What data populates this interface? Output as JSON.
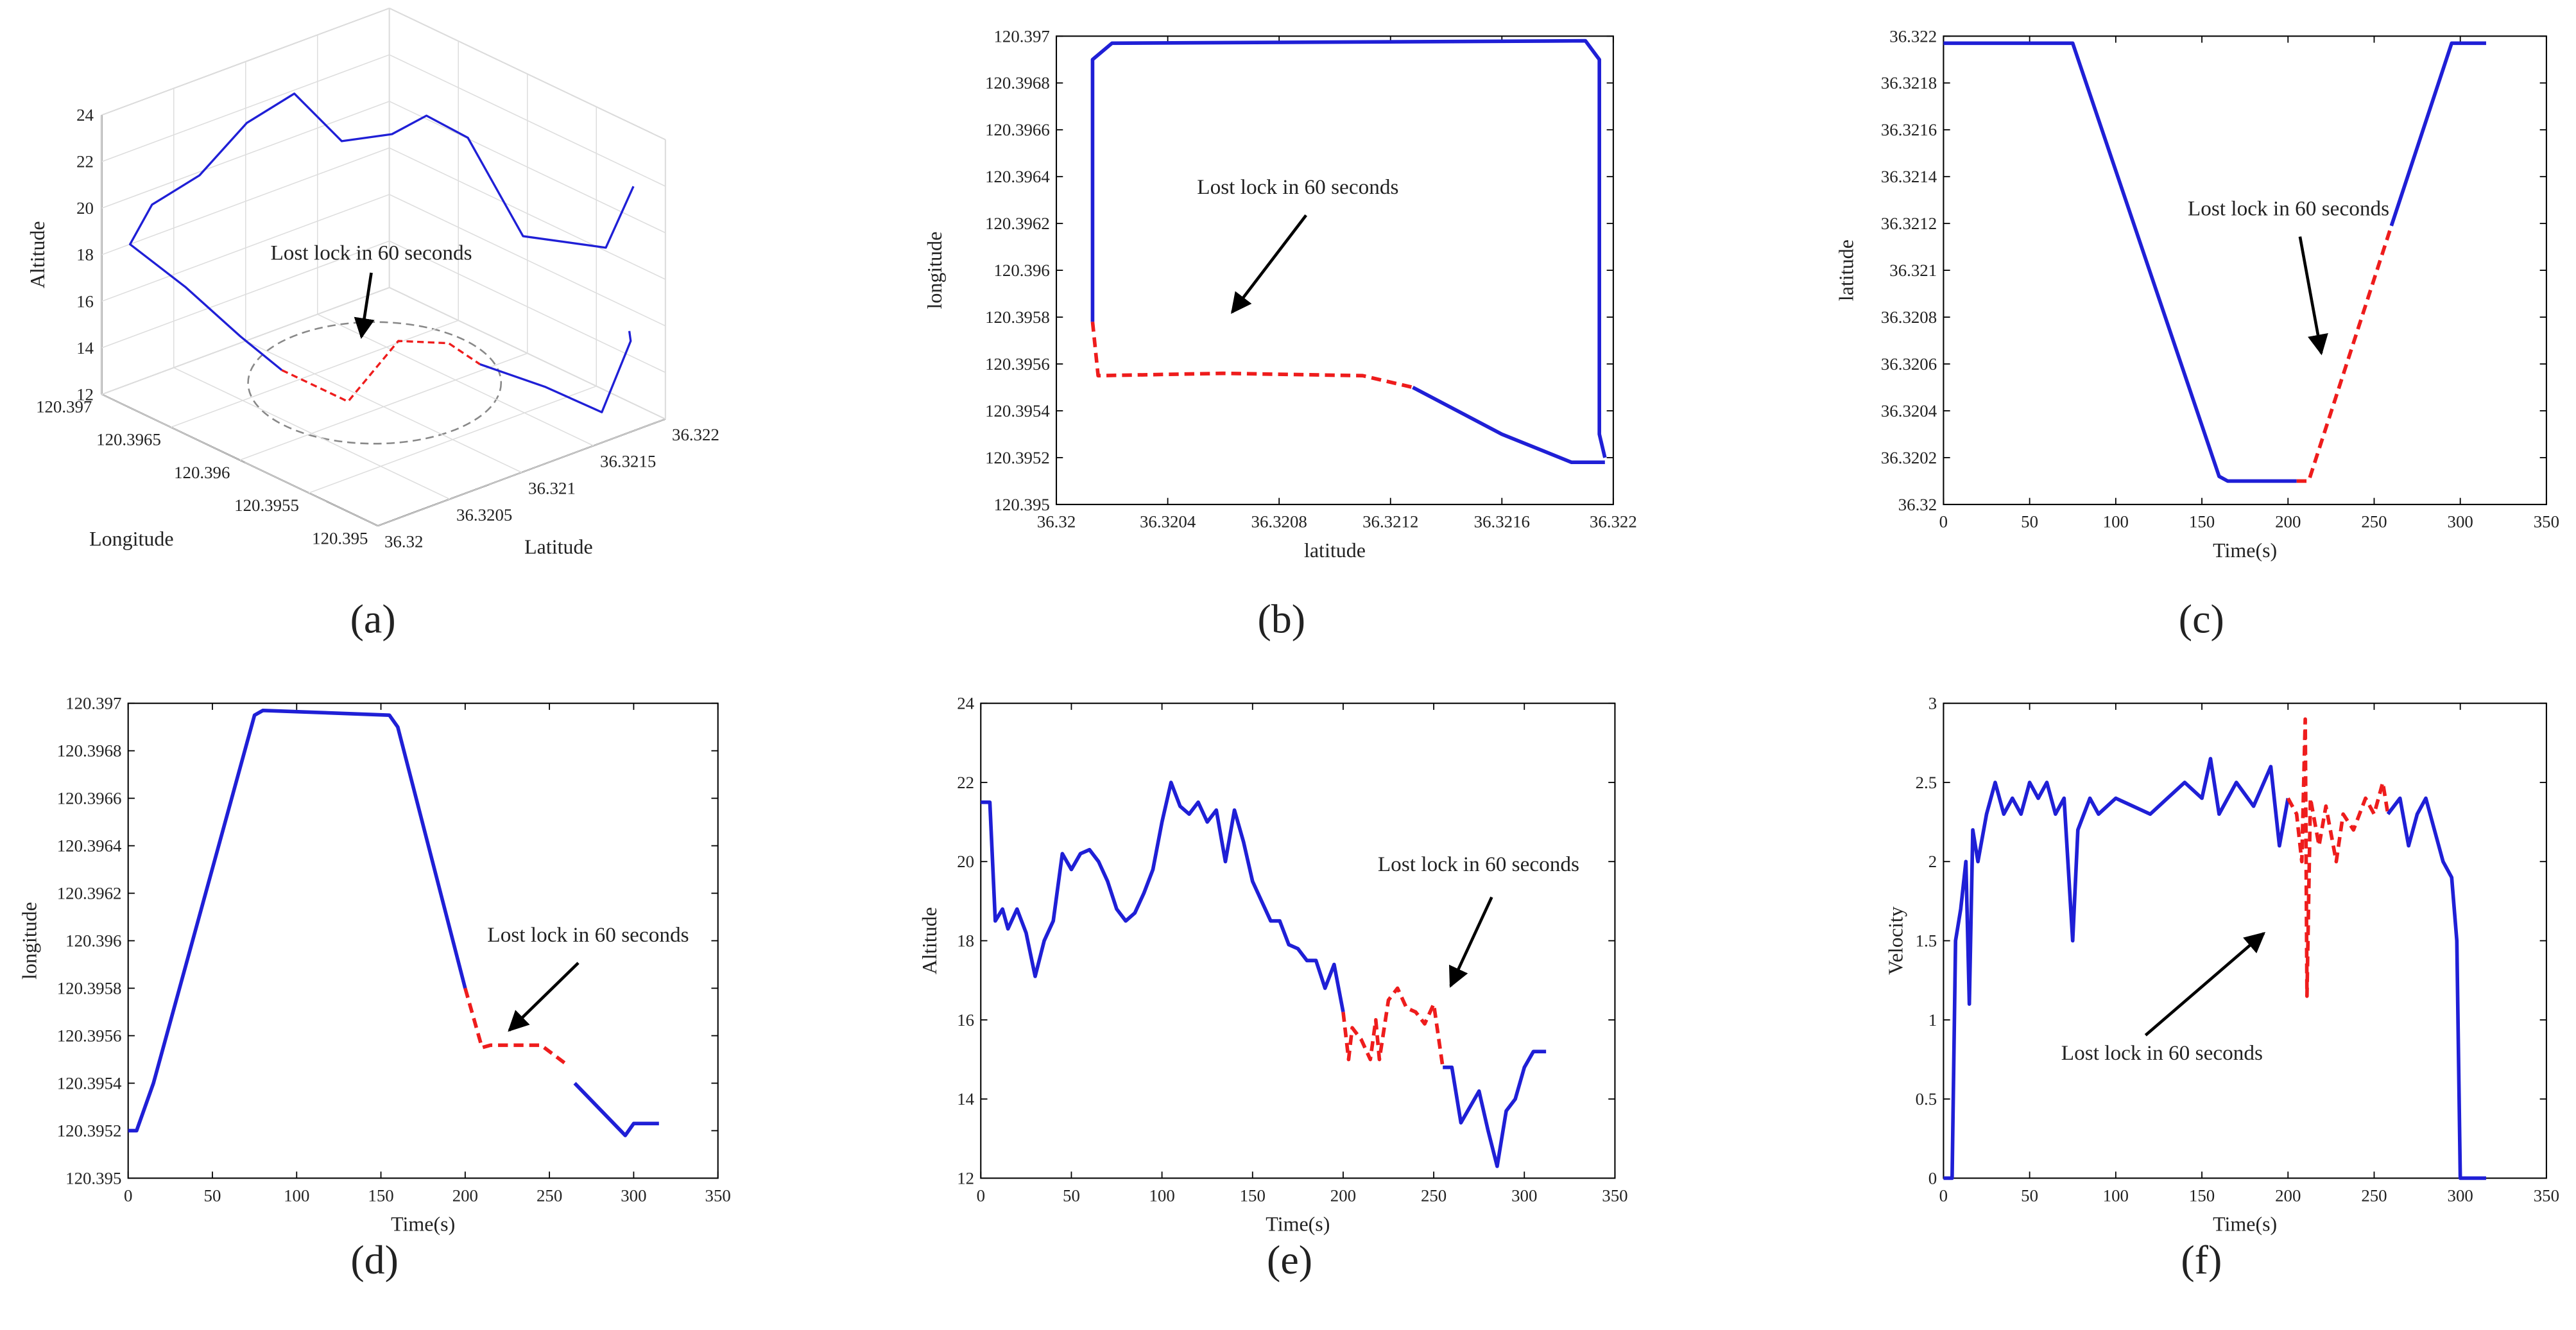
{
  "chart_data": [
    {
      "type": "line3d",
      "panel_label": "(a)",
      "xlabel": "Latitude",
      "ylabel": "Longitude",
      "zlabel": "Altitude",
      "annotation": "Lost lock in 60 seconds",
      "xlim": [
        36.32,
        36.322
      ],
      "xticks": [
        36.32,
        36.3205,
        36.321,
        36.3215,
        36.322
      ],
      "ylim": [
        120.395,
        120.397
      ],
      "yticks": [
        120.395,
        120.3955,
        120.396,
        120.3965,
        120.397
      ],
      "zlim": [
        12,
        24
      ],
      "zticks": [
        12,
        14,
        16,
        18,
        20,
        22,
        24
      ],
      "grid": true,
      "series": [
        {
          "color": "#1f1fd6",
          "dashed": false,
          "x": [
            36.32197,
            36.32197,
            36.32197,
            36.32197,
            36.32197,
            36.32197,
            36.32164,
            36.32131,
            36.32098,
            36.32065,
            36.32032,
            36.3201,
            36.3201,
            36.3201,
            36.3201
          ],
          "y": [
            120.3952,
            120.3954,
            120.396,
            120.3964,
            120.3967,
            120.39695,
            120.39697,
            120.39697,
            120.39697,
            120.39697,
            120.39697,
            120.3969,
            120.3965,
            120.3961,
            120.3958
          ],
          "values": [
            21.5,
            18.3,
            17.1,
            20.2,
            20.3,
            18.8,
            19.2,
            22,
            21.5,
            20,
            19.5,
            18.5,
            17.8,
            16.8,
            16.2
          ]
        },
        {
          "color": "#ee1c1c",
          "dashed": true,
          "x": [
            36.3201,
            36.32033,
            36.32068,
            36.32103,
            36.32119
          ],
          "y": [
            120.3958,
            120.39556,
            120.39556,
            120.39556,
            120.3955
          ],
          "values": [
            16.2,
            15,
            16.8,
            15.9,
            14.8
          ]
        },
        {
          "color": "#1f1fd6",
          "dashed": false,
          "x": [
            36.32119,
            36.32145,
            36.32175,
            36.32197,
            36.32197
          ],
          "y": [
            120.3955,
            120.3953,
            120.3952,
            120.39522,
            120.39523
          ],
          "values": [
            14.8,
            13.8,
            12.3,
            14.8,
            15.2
          ]
        }
      ]
    },
    {
      "type": "line",
      "panel_label": "(b)",
      "xlabel": "latitude",
      "ylabel": "longitude",
      "annotation": "Lost lock in 60 seconds",
      "xlim": [
        36.32,
        36.322
      ],
      "xticks": [
        36.32,
        36.3204,
        36.3208,
        36.3212,
        36.3216,
        36.322
      ],
      "ylim": [
        120.395,
        120.397
      ],
      "yticks": [
        120.395,
        120.3952,
        120.3954,
        120.3956,
        120.3958,
        120.396,
        120.3962,
        120.3964,
        120.3966,
        120.3968,
        120.397
      ],
      "series": [
        {
          "color": "#1f1fd6",
          "dashed": false,
          "x": [
            36.32197,
            36.32195,
            36.32195,
            36.3219,
            36.3202,
            36.32013,
            36.32013
          ],
          "values": [
            120.3952,
            120.3953,
            120.3969,
            120.39698,
            120.39697,
            120.3969,
            120.39578
          ]
        },
        {
          "color": "#ee1c1c",
          "dashed": true,
          "x": [
            36.32013,
            36.32015,
            36.3206,
            36.3211,
            36.32128
          ],
          "values": [
            120.39578,
            120.39555,
            120.39556,
            120.39555,
            120.3955
          ]
        },
        {
          "color": "#1f1fd6",
          "dashed": false,
          "x": [
            36.32128,
            36.3216,
            36.32185,
            36.32197
          ],
          "values": [
            120.3955,
            120.3953,
            120.39518,
            120.39518
          ]
        }
      ]
    },
    {
      "type": "line",
      "panel_label": "(c)",
      "xlabel": "Time(s)",
      "ylabel": "latitude",
      "annotation": "Lost lock in 60 seconds",
      "xlim": [
        0,
        350
      ],
      "xticks": [
        0,
        50,
        100,
        150,
        200,
        250,
        300,
        350
      ],
      "ylim": [
        36.32,
        36.322
      ],
      "yticks": [
        36.32,
        36.3202,
        36.3204,
        36.3206,
        36.3208,
        36.321,
        36.3212,
        36.3214,
        36.3216,
        36.3218,
        36.322
      ],
      "series": [
        {
          "color": "#1f1fd6",
          "dashed": false,
          "x": [
            0,
            75,
            160,
            165,
            205
          ],
          "values": [
            36.32197,
            36.32197,
            36.32012,
            36.3201,
            36.3201
          ]
        },
        {
          "color": "#ee1c1c",
          "dashed": true,
          "x": [
            205,
            212,
            260
          ],
          "values": [
            36.3201,
            36.3201,
            36.32119
          ]
        },
        {
          "color": "#1f1fd6",
          "dashed": false,
          "x": [
            260,
            295,
            315
          ],
          "values": [
            36.32119,
            36.32197,
            36.32197
          ]
        }
      ]
    },
    {
      "type": "line",
      "panel_label": "(d)",
      "xlabel": "Time(s)",
      "ylabel": "longitude",
      "annotation": "Lost lock in 60 seconds",
      "xlim": [
        0,
        350
      ],
      "xticks": [
        0,
        50,
        100,
        150,
        200,
        250,
        300,
        350
      ],
      "ylim": [
        120.395,
        120.397
      ],
      "yticks": [
        120.395,
        120.3952,
        120.3954,
        120.3956,
        120.3958,
        120.396,
        120.3962,
        120.3964,
        120.3966,
        120.3968,
        120.397
      ],
      "series": [
        {
          "color": "#1f1fd6",
          "dashed": false,
          "x": [
            0,
            5,
            15,
            75,
            80,
            155,
            160,
            200
          ],
          "values": [
            120.3952,
            120.3952,
            120.3954,
            120.39695,
            120.39697,
            120.39695,
            120.3969,
            120.3958
          ]
        },
        {
          "color": "#ee1c1c",
          "dashed": true,
          "x": [
            200,
            210,
            215,
            245,
            260
          ],
          "values": [
            120.3958,
            120.39555,
            120.39556,
            120.39556,
            120.39548
          ]
        },
        {
          "color": "#1f1fd6",
          "dashed": false,
          "x": [
            265,
            295,
            300,
            315
          ],
          "values": [
            120.3954,
            120.39518,
            120.39523,
            120.39523
          ]
        }
      ]
    },
    {
      "type": "line",
      "panel_label": "(e)",
      "xlabel": "Time(s)",
      "ylabel": "Altitude",
      "annotation": "Lost lock in 60 seconds",
      "xlim": [
        0,
        350
      ],
      "xticks": [
        0,
        50,
        100,
        150,
        200,
        250,
        300,
        350
      ],
      "ylim": [
        12,
        24
      ],
      "yticks": [
        12,
        14,
        16,
        18,
        20,
        22,
        24
      ],
      "series": [
        {
          "color": "#1f1fd6",
          "dashed": false,
          "x": [
            0,
            5,
            8,
            12,
            15,
            20,
            25,
            30,
            35,
            40,
            45,
            50,
            55,
            60,
            65,
            70,
            75,
            80,
            85,
            90,
            95,
            100,
            105,
            110,
            115,
            120,
            125,
            130,
            135,
            140,
            145,
            150,
            155,
            160,
            165,
            170,
            175,
            180,
            185,
            190,
            195,
            200
          ],
          "values": [
            21.5,
            21.5,
            18.5,
            18.8,
            18.3,
            18.8,
            18.2,
            17.1,
            18,
            18.5,
            20.2,
            19.8,
            20.2,
            20.3,
            20,
            19.5,
            18.8,
            18.5,
            18.7,
            19.2,
            19.8,
            21,
            22,
            21.4,
            21.2,
            21.5,
            21,
            21.3,
            20,
            21.3,
            20.5,
            19.5,
            19,
            18.5,
            18.5,
            17.9,
            17.8,
            17.5,
            17.5,
            16.8,
            17.4,
            16.2
          ]
        },
        {
          "color": "#ee1c1c",
          "dashed": true,
          "x": [
            200,
            203,
            205,
            210,
            215,
            218,
            220,
            225,
            230,
            235,
            240,
            245,
            250,
            255
          ],
          "values": [
            16.2,
            15,
            15.8,
            15.5,
            15,
            16,
            15,
            16.5,
            16.8,
            16.3,
            16.2,
            15.9,
            16.4,
            14.8
          ]
        },
        {
          "color": "#1f1fd6",
          "dashed": false,
          "x": [
            255,
            260,
            265,
            270,
            275,
            280,
            285,
            290,
            295,
            300,
            305,
            312
          ],
          "values": [
            14.8,
            14.8,
            13.4,
            13.8,
            14.2,
            13.2,
            12.3,
            13.7,
            14,
            14.8,
            15.2,
            15.2
          ]
        }
      ]
    },
    {
      "type": "line",
      "panel_label": "(f)",
      "xlabel": "Time(s)",
      "ylabel": "Velocity",
      "annotation": "Lost lock in 60 seconds",
      "xlim": [
        0,
        350
      ],
      "xticks": [
        0,
        50,
        100,
        150,
        200,
        250,
        300,
        350
      ],
      "ylim": [
        0,
        3
      ],
      "yticks": [
        0,
        0.5,
        1,
        1.5,
        2,
        2.5,
        3
      ],
      "series": [
        {
          "color": "#1f1fd6",
          "dashed": false,
          "x": [
            0,
            5,
            7,
            10,
            13,
            15,
            17,
            20,
            25,
            30,
            35,
            40,
            45,
            50,
            55,
            60,
            65,
            70,
            75,
            78,
            85,
            90,
            100,
            110,
            120,
            130,
            140,
            150,
            155,
            160,
            170,
            180,
            190,
            195,
            200
          ],
          "values": [
            0,
            0,
            1.5,
            1.7,
            2,
            1.1,
            2.2,
            2,
            2.3,
            2.5,
            2.3,
            2.4,
            2.3,
            2.5,
            2.4,
            2.5,
            2.3,
            2.4,
            1.5,
            2.2,
            2.4,
            2.3,
            2.4,
            2.35,
            2.3,
            2.4,
            2.5,
            2.4,
            2.65,
            2.3,
            2.5,
            2.35,
            2.6,
            2.1,
            2.4
          ]
        },
        {
          "color": "#ee1c1c",
          "dashed": true,
          "x": [
            200,
            205,
            208,
            210,
            211,
            213,
            218,
            222,
            228,
            232,
            238,
            245,
            250,
            255,
            258
          ],
          "values": [
            2.4,
            2.3,
            2,
            2.9,
            1.15,
            2.4,
            2.1,
            2.35,
            2,
            2.3,
            2.2,
            2.4,
            2.3,
            2.5,
            2.3
          ]
        },
        {
          "color": "#1f1fd6",
          "dashed": false,
          "x": [
            258,
            265,
            270,
            275,
            280,
            285,
            290,
            295,
            298,
            300,
            310,
            315
          ],
          "values": [
            2.3,
            2.4,
            2.1,
            2.3,
            2.4,
            2.2,
            2,
            1.9,
            1.5,
            0,
            0,
            0
          ]
        }
      ]
    }
  ]
}
